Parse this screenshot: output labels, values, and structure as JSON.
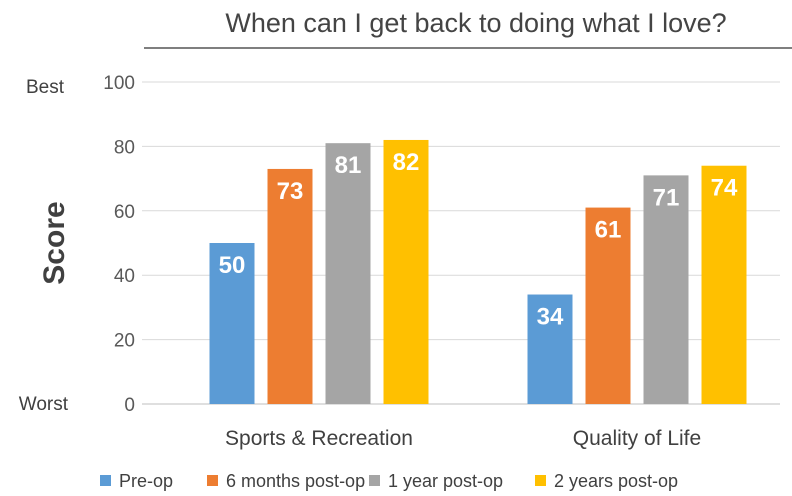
{
  "chart_data": {
    "type": "bar",
    "title": "When can I get back to doing what I love?",
    "ylabel": "Score",
    "ylim": [
      0,
      100
    ],
    "yticks": [
      0,
      20,
      40,
      60,
      80,
      100
    ],
    "y_extreme_labels": {
      "top": "Best",
      "bottom": "Worst"
    },
    "categories": [
      "Sports & Recreation",
      "Quality of Life"
    ],
    "series": [
      {
        "name": "Pre-op",
        "color": "#5B9BD5",
        "values": [
          50,
          34
        ]
      },
      {
        "name": "6 months post-op",
        "color": "#ED7D31",
        "values": [
          73,
          61
        ]
      },
      {
        "name": "1 year post-op",
        "color": "#A5A5A5",
        "values": [
          81,
          71
        ]
      },
      {
        "name": "2 years post-op",
        "color": "#FFC000",
        "values": [
          82,
          74
        ]
      }
    ],
    "grid": true,
    "legend_position": "bottom",
    "data_labels": true
  }
}
